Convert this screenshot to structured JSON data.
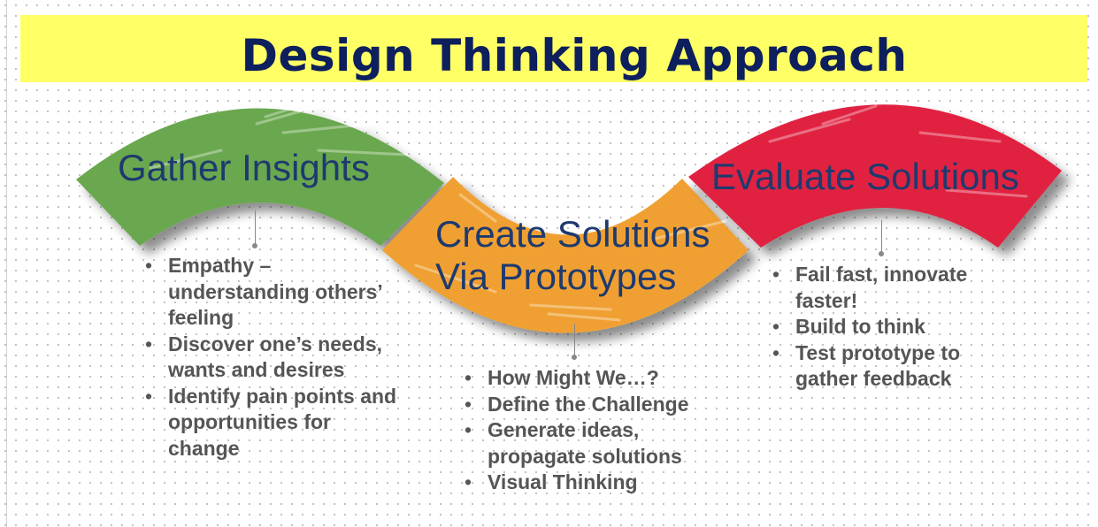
{
  "title": "Design Thinking Approach",
  "colors": {
    "title_background": "#ffff66",
    "title_text": "#0d1f5c",
    "stage_label_text": "#1e3a6e",
    "bullet_text": "#555555",
    "stage1": "#6aa84f",
    "stage2": "#f0a030",
    "stage3": "#e02040"
  },
  "stages": [
    {
      "label": "Gather Insights",
      "color": "#6aa84f",
      "bullets": [
        "Empathy – understanding others’ feeling",
        "Discover one’s needs, wants and desires",
        "Identify pain points and opportunities for change"
      ]
    },
    {
      "label": "Create Solutions Via Prototypes",
      "color": "#f0a030",
      "bullets": [
        "How Might We…?",
        "Define the Challenge",
        "Generate ideas, propagate solutions",
        "Visual Thinking"
      ]
    },
    {
      "label": "Evaluate Solutions",
      "color": "#e02040",
      "bullets": [
        "Fail fast, innovate faster!",
        "Build to think",
        "Test prototype to gather feedback"
      ]
    }
  ]
}
